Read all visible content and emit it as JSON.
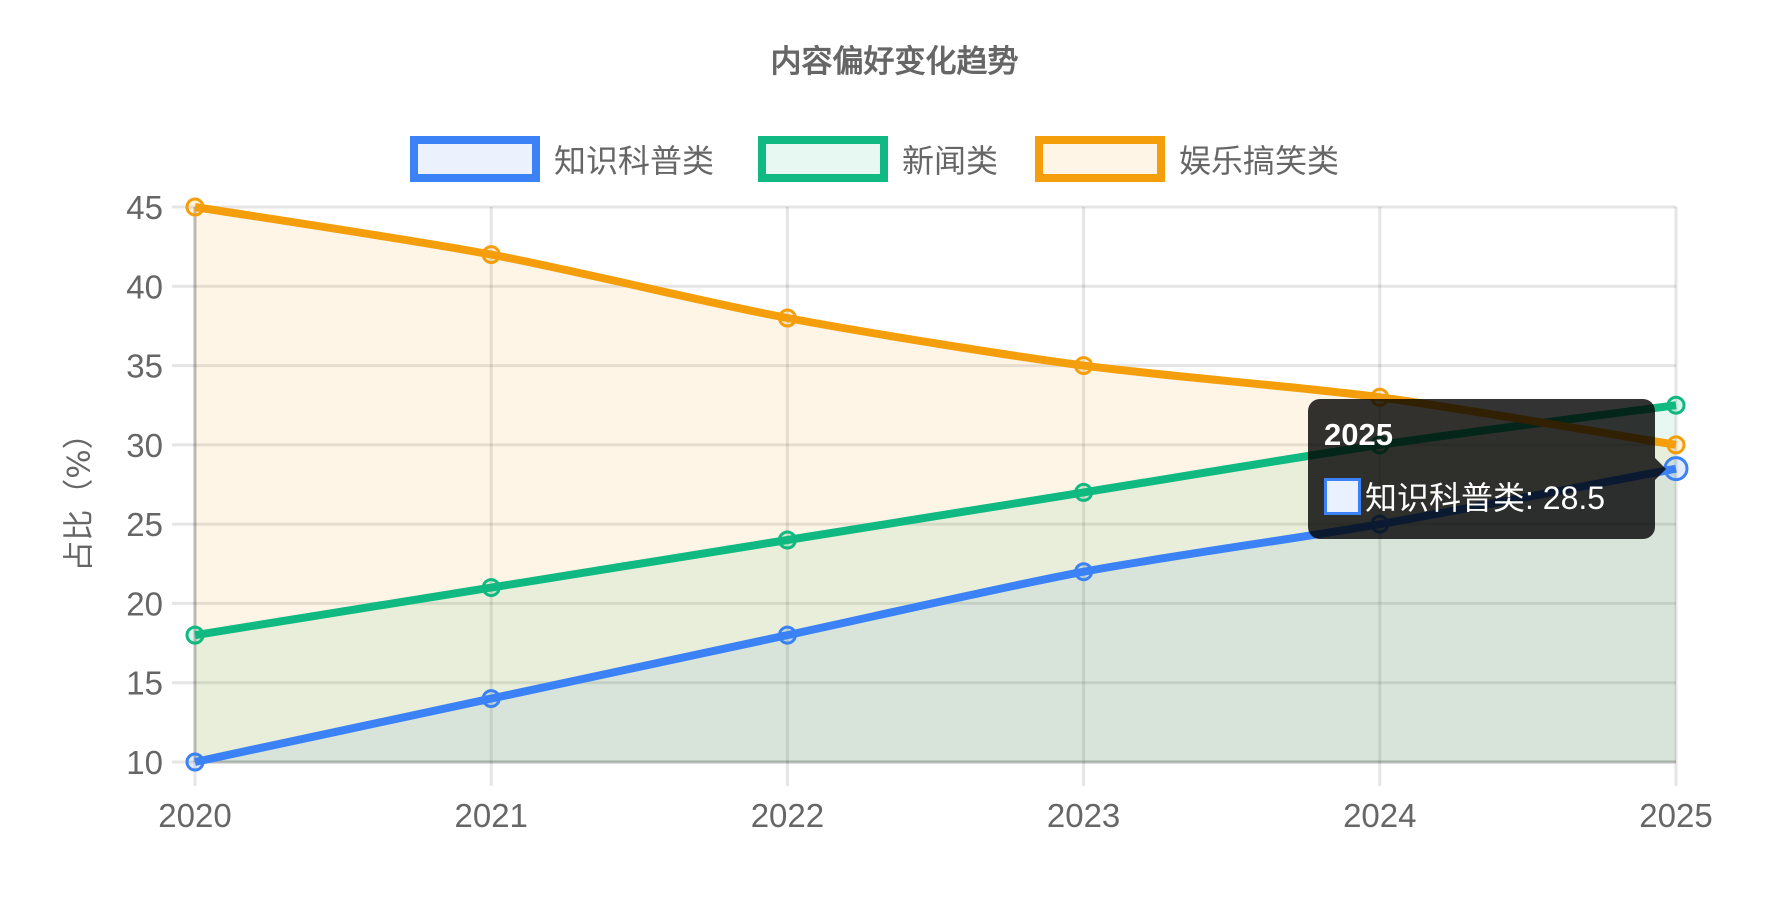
{
  "chart_data": {
    "type": "line",
    "title": "内容偏好变化趋势",
    "xlabel": "",
    "ylabel": "占比（%）",
    "categories": [
      "2020",
      "2021",
      "2022",
      "2023",
      "2024",
      "2025"
    ],
    "series": [
      {
        "name": "知识科普类",
        "color": "#3b82f6",
        "fill": "rgba(59,130,246,0.1)",
        "values": [
          10,
          14,
          18,
          22,
          25,
          28.5
        ]
      },
      {
        "name": "新闻类",
        "color": "#10b981",
        "fill": "rgba(16,185,129,0.1)",
        "values": [
          18,
          21,
          24,
          27,
          30,
          32.5
        ]
      },
      {
        "name": "娱乐搞笑类",
        "color": "#f59e0b",
        "fill": "rgba(245,158,11,0.1)",
        "values": [
          45,
          42,
          38,
          35,
          33,
          30
        ]
      }
    ],
    "ylim": [
      10,
      45
    ],
    "yticks": [
      10,
      15,
      20,
      25,
      30,
      35,
      40,
      45
    ],
    "grid": true,
    "legend_position": "top",
    "filled": true
  },
  "tooltip": {
    "title": "2025",
    "label": "知识科普类: 28.5",
    "series_index": 0,
    "point_index": 5
  }
}
